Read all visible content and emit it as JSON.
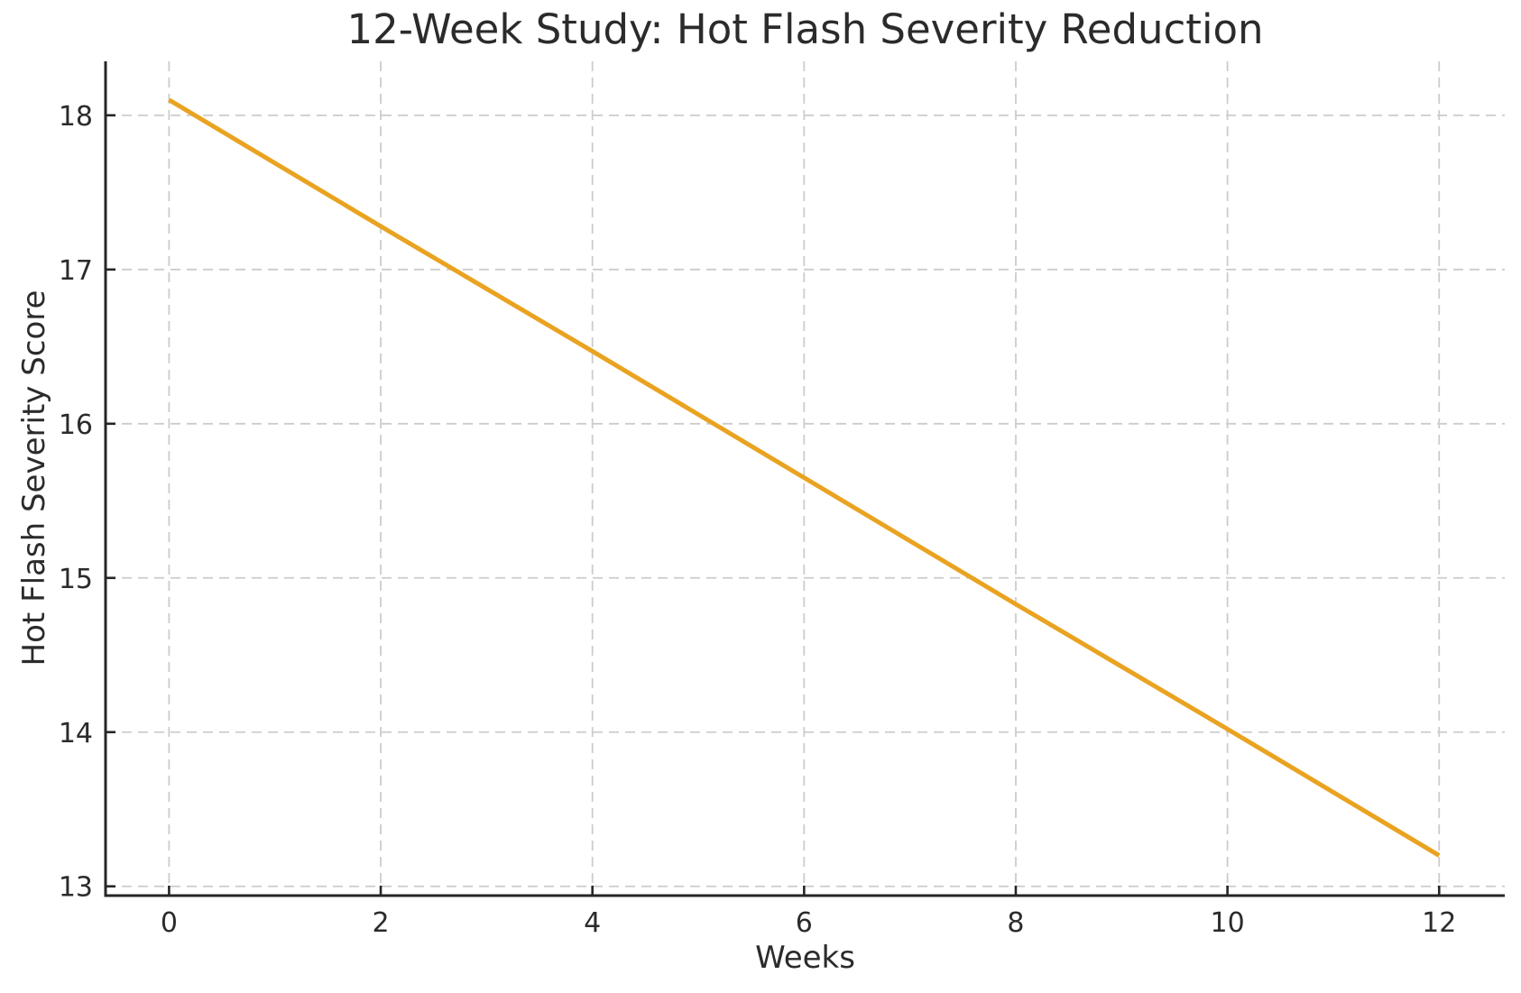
{
  "chart_data": {
    "type": "line",
    "title": "12-Week Study: Hot Flash Severity Reduction",
    "xlabel": "Weeks",
    "ylabel": "Hot Flash Severity Score",
    "x": [
      0,
      2,
      4,
      6,
      8,
      10,
      12
    ],
    "y": [
      18.1,
      17.28,
      16.47,
      15.65,
      14.83,
      14.02,
      13.2
    ],
    "x_ticks": [
      0,
      2,
      4,
      6,
      8,
      10,
      12
    ],
    "y_ticks": [
      13,
      14,
      15,
      16,
      17,
      18
    ],
    "xlim": [
      -0.6,
      12.62
    ],
    "ylim": [
      12.94,
      18.35
    ],
    "grid": true,
    "grid_style": "dashed",
    "legend": "none",
    "colors": {
      "line": "#E9A321",
      "grid": "#CCCCCC",
      "axis": "#262626",
      "text": "#2B2B2B"
    }
  }
}
